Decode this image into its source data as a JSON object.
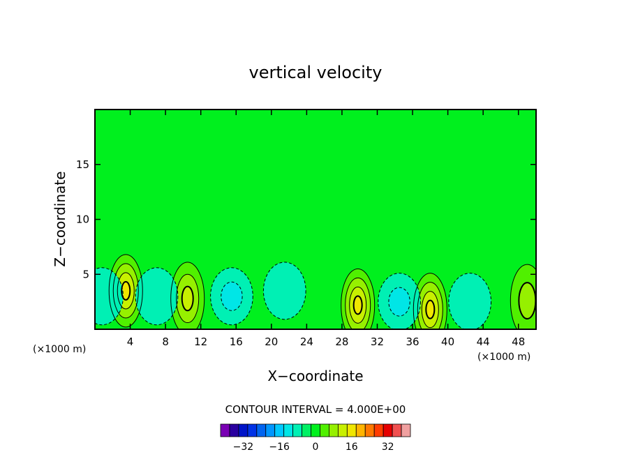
{
  "chart_data": {
    "type": "heatmap",
    "title": "vertical velocity",
    "xlabel": "X−coordinate",
    "ylabel": "Z−coordinate",
    "x_unit": "(×1000 m)",
    "y_unit": "(×1000 m)",
    "xlim": [
      0,
      50
    ],
    "ylim": [
      0,
      20
    ],
    "x_ticks": [
      4,
      8,
      12,
      16,
      20,
      24,
      28,
      32,
      36,
      40,
      44,
      48
    ],
    "y_ticks": [
      5,
      10,
      15
    ],
    "contour_interval_text": "CONTOUR INTERVAL = 4.000E+00",
    "colorbar": {
      "levels": [
        -40,
        -36,
        -32,
        -28,
        -24,
        -20,
        -16,
        -12,
        -8,
        -4,
        0,
        4,
        8,
        12,
        16,
        20,
        24,
        28,
        32,
        36,
        40
      ],
      "colors": [
        "#7a00b4",
        "#2a00a0",
        "#0014c8",
        "#0032e6",
        "#0064f0",
        "#0096ff",
        "#00c8ff",
        "#00e6e6",
        "#00f0b4",
        "#00f064",
        "#00f01e",
        "#50f000",
        "#96f000",
        "#c8f000",
        "#f0e600",
        "#ffb400",
        "#ff7800",
        "#ff3c00",
        "#e60000",
        "#f05050",
        "#f0a0a0"
      ],
      "tick_labels": [
        "−32",
        "−16",
        "0",
        "16",
        "32"
      ],
      "tick_values": [
        -32,
        -16,
        0,
        16,
        32
      ]
    },
    "features": [
      {
        "kind": "updraft",
        "x": 3.5,
        "z": 3.5,
        "max": 16
      },
      {
        "kind": "updraft",
        "x": 10.5,
        "z": 2.8,
        "max": 12
      },
      {
        "kind": "updraft",
        "x": 29.8,
        "z": 2.2,
        "max": 16
      },
      {
        "kind": "updraft",
        "x": 38.0,
        "z": 1.8,
        "max": 16
      },
      {
        "kind": "updraft",
        "x": 49.0,
        "z": 2.6,
        "max": 8
      },
      {
        "kind": "downdraft",
        "x": 15.5,
        "z": 3.0,
        "min": -8
      },
      {
        "kind": "downdraft",
        "x": 34.5,
        "z": 2.5,
        "min": -8
      },
      {
        "kind": "downdraft",
        "x": 7.0,
        "z": 3.0,
        "min": -4
      },
      {
        "kind": "downdraft",
        "x": 21.5,
        "z": 3.5,
        "min": -4
      },
      {
        "kind": "downdraft",
        "x": 42.5,
        "z": 2.5,
        "min": -4
      },
      {
        "kind": "downdraft",
        "x": 0.8,
        "z": 3.0,
        "min": -4
      }
    ],
    "background_value": 0
  }
}
